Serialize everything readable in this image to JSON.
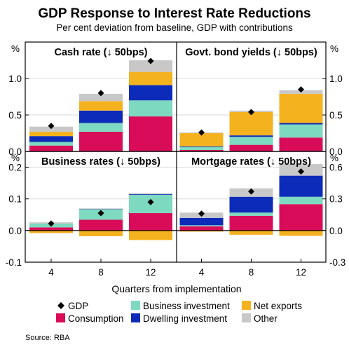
{
  "title": "GDP Response to Interest Rate Reductions",
  "subtitle": "Per cent deviation from baseline, GDP with contributions",
  "source": "Source:   RBA",
  "xlabel": "Quarters from implementation",
  "unit_label": "%",
  "legend": [
    {
      "key": "gdp",
      "label": "GDP",
      "type": "diamond",
      "color": "#000000"
    },
    {
      "key": "business_investment",
      "label": "Business investment",
      "type": "square",
      "color": "#7dd9bf"
    },
    {
      "key": "net_exports",
      "label": "Net exports",
      "type": "square",
      "color": "#f5b21f"
    },
    {
      "key": "consumption",
      "label": "Consumption",
      "type": "square",
      "color": "#d90c5a"
    },
    {
      "key": "dwelling_investment",
      "label": "Dwelling investment",
      "type": "square",
      "color": "#0c2bb8"
    },
    {
      "key": "other",
      "label": "Other",
      "type": "square",
      "color": "#c8c8c8"
    }
  ],
  "chart_data": [
    {
      "type": "bar",
      "stacked": true,
      "title": "Cash rate (↓ 50bps)",
      "categories": [
        "4",
        "8",
        "12"
      ],
      "ylim": [
        0,
        1.5
      ],
      "yticks": [
        0.0,
        0.5,
        1.0
      ],
      "ytick_labels": [
        "0.0",
        "0.5",
        "1.0"
      ],
      "yaxis_side": "left",
      "series": [
        {
          "name": "Consumption",
          "key": "consumption",
          "values": [
            0.08,
            0.27,
            0.48
          ]
        },
        {
          "name": "Business investment",
          "key": "business_investment",
          "values": [
            0.05,
            0.12,
            0.22
          ]
        },
        {
          "name": "Dwelling investment",
          "key": "dwelling_investment",
          "values": [
            0.08,
            0.17,
            0.21
          ]
        },
        {
          "name": "Net exports",
          "key": "net_exports",
          "values": [
            0.06,
            0.13,
            0.18
          ]
        },
        {
          "name": "Other",
          "key": "other",
          "values": [
            0.07,
            0.1,
            0.16
          ]
        }
      ],
      "gdp": [
        0.35,
        0.8,
        1.24
      ]
    },
    {
      "type": "bar",
      "stacked": true,
      "title": "Govt. bond yields (↓ 50bps)",
      "categories": [
        "4",
        "8",
        "12"
      ],
      "ylim": [
        0,
        1.5
      ],
      "yticks": [
        0.0,
        0.5,
        1.0
      ],
      "ytick_labels": [
        "0.0",
        "0.5",
        "1.0"
      ],
      "yaxis_side": "right",
      "series": [
        {
          "name": "Consumption",
          "key": "consumption",
          "values": [
            0.02,
            0.09,
            0.19
          ]
        },
        {
          "name": "Business investment",
          "key": "business_investment",
          "values": [
            0.04,
            0.11,
            0.18
          ]
        },
        {
          "name": "Dwelling investment",
          "key": "dwelling_investment",
          "values": [
            0.01,
            0.02,
            0.02
          ]
        },
        {
          "name": "Net exports",
          "key": "net_exports",
          "values": [
            0.18,
            0.32,
            0.4
          ]
        },
        {
          "name": "Other",
          "key": "other",
          "values": [
            0.01,
            0.02,
            0.05
          ]
        }
      ],
      "gdp": [
        0.26,
        0.54,
        0.85
      ]
    },
    {
      "type": "bar",
      "stacked": true,
      "title": "Business rates (↓ 50bps)",
      "categories": [
        "4",
        "8",
        "12"
      ],
      "ylim": [
        -0.1,
        0.25
      ],
      "yticks": [
        -0.1,
        0.0,
        0.1,
        0.2
      ],
      "ytick_labels": [
        "-0.1",
        "0.0",
        "0.1",
        "0.2"
      ],
      "yaxis_side": "left",
      "series": [
        {
          "name": "Consumption",
          "key": "consumption",
          "values": [
            0.01,
            0.034,
            0.055
          ]
        },
        {
          "name": "Business investment",
          "key": "business_investment",
          "values": [
            0.012,
            0.033,
            0.058
          ]
        },
        {
          "name": "Dwelling investment",
          "key": "dwelling_investment",
          "values": [
            0.0,
            0.001,
            0.002
          ]
        },
        {
          "name": "Net exports",
          "key": "net_exports",
          "values": [
            -0.008,
            -0.018,
            -0.03
          ]
        },
        {
          "name": "Other",
          "key": "other",
          "values": [
            0.004,
            0.002,
            0.003
          ]
        }
      ],
      "gdp": [
        0.022,
        0.055,
        0.09
      ]
    },
    {
      "type": "bar",
      "stacked": true,
      "title": "Mortgage rates (↓ 50bps)",
      "categories": [
        "4",
        "8",
        "12"
      ],
      "ylim": [
        -0.3,
        0.75
      ],
      "yticks": [
        -0.3,
        0.0,
        0.3,
        0.6
      ],
      "ytick_labels": [
        "-0.3",
        "0.0",
        "0.3",
        "0.6"
      ],
      "yaxis_side": "right",
      "series": [
        {
          "name": "Consumption",
          "key": "consumption",
          "values": [
            0.04,
            0.14,
            0.25
          ]
        },
        {
          "name": "Business investment",
          "key": "business_investment",
          "values": [
            0.01,
            0.03,
            0.07
          ]
        },
        {
          "name": "Dwelling investment",
          "key": "dwelling_investment",
          "values": [
            0.07,
            0.15,
            0.2
          ]
        },
        {
          "name": "Net exports",
          "key": "net_exports",
          "values": [
            -0.01,
            -0.04,
            -0.05
          ]
        },
        {
          "name": "Other",
          "key": "other",
          "values": [
            0.05,
            0.08,
            0.11
          ]
        }
      ],
      "gdp": [
        0.16,
        0.37,
        0.56
      ]
    }
  ]
}
